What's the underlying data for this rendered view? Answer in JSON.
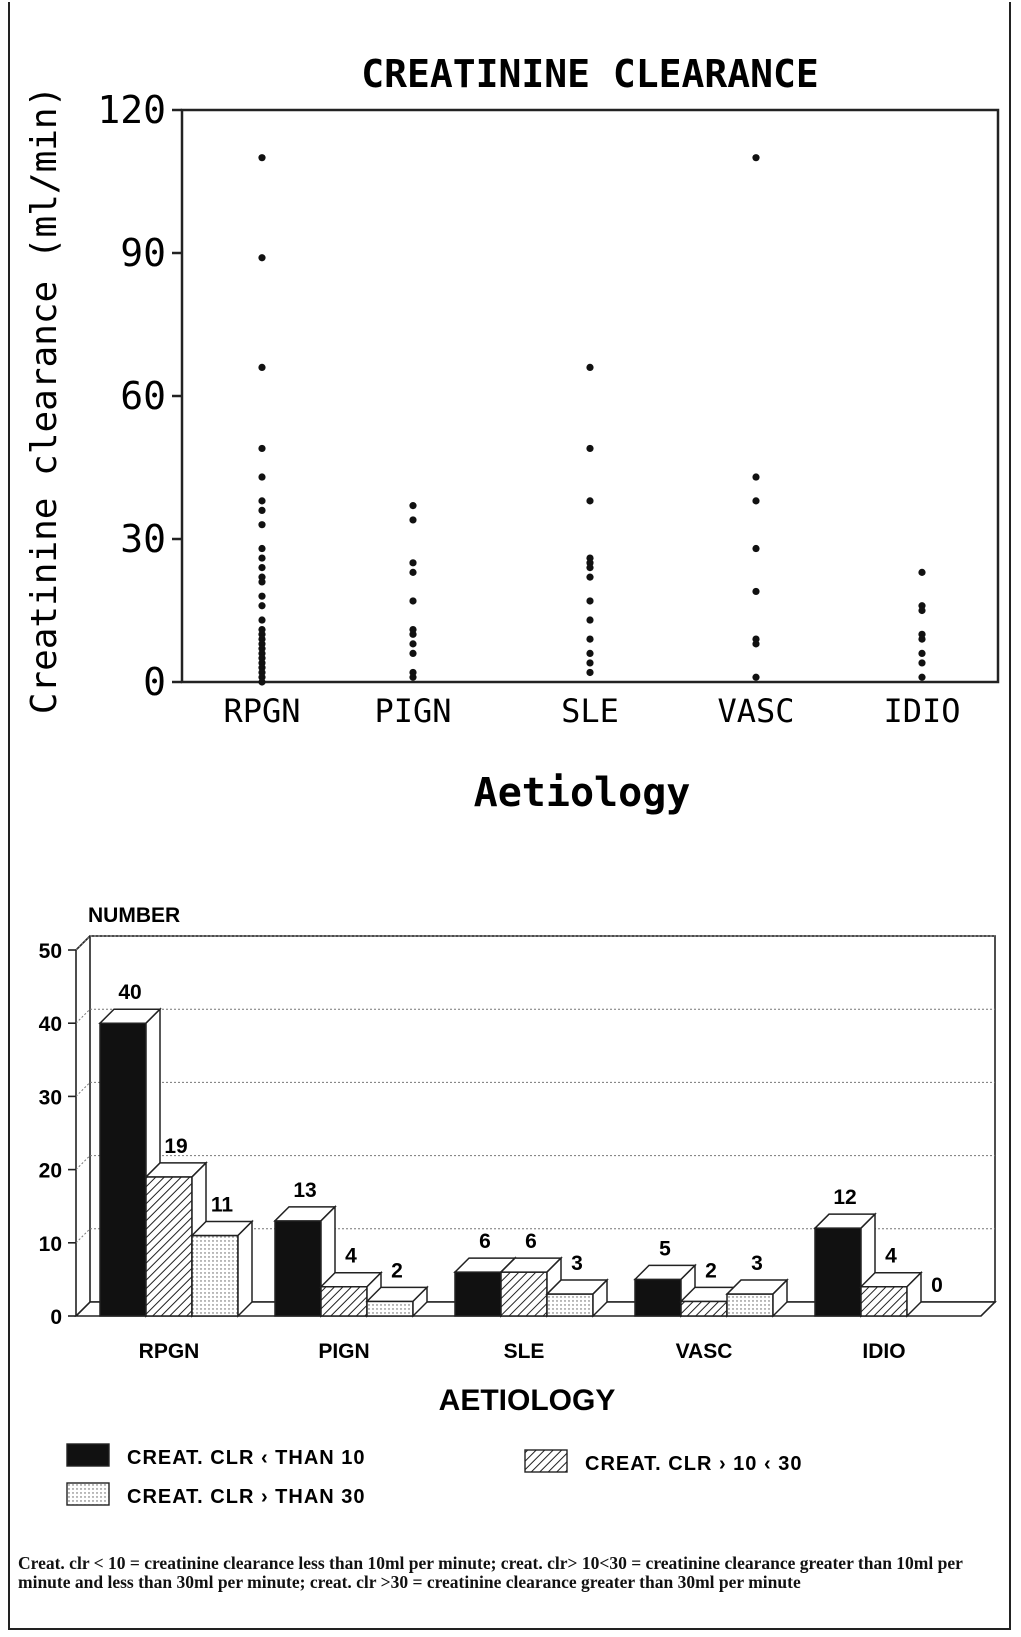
{
  "chart_data": [
    {
      "type": "scatter",
      "title": "CREATININE CLEARANCE",
      "xlabel": "Aetiology",
      "ylabel": "Creatinine clearance (ml/min)",
      "categories": [
        "RPGN",
        "PIGN",
        "SLE",
        "VASC",
        "IDIO"
      ],
      "ylim": [
        0,
        120
      ],
      "yticks": [
        "0",
        "30",
        "60",
        "90",
        "120"
      ],
      "grid": false,
      "points": {
        "RPGN": [
          110,
          89,
          66,
          49,
          43,
          38,
          36,
          33,
          28,
          26,
          24,
          22,
          21,
          18,
          16,
          13,
          11,
          10,
          9,
          8,
          7,
          6,
          5,
          4,
          3,
          2,
          1,
          0
        ],
        "PIGN": [
          37,
          34,
          25,
          23,
          17,
          11,
          10,
          8,
          6,
          2,
          1
        ],
        "SLE": [
          66,
          49,
          38,
          26,
          25,
          24,
          22,
          17,
          13,
          9,
          6,
          4,
          2
        ],
        "VASC": [
          110,
          43,
          38,
          28,
          19,
          9,
          8,
          1
        ],
        "IDIO": [
          23,
          16,
          15,
          10,
          9,
          6,
          4,
          1
        ]
      }
    },
    {
      "type": "bar",
      "title": "",
      "ylabel": "NUMBER",
      "xlabel": "AETIOLOGY",
      "categories": [
        "RPGN",
        "PIGN",
        "SLE",
        "VASC",
        "IDIO"
      ],
      "ylim": [
        0,
        50
      ],
      "yticks": [
        "0",
        "10",
        "20",
        "30",
        "40",
        "50"
      ],
      "grid": true,
      "legend_position": "bottom",
      "series": [
        {
          "name": "CREAT. CLR ‹ THAN 10",
          "values": [
            40,
            13,
            6,
            5,
            12
          ],
          "labels": [
            "40",
            "13",
            "6",
            "5",
            "12"
          ],
          "color": "#111111",
          "pattern": "solid"
        },
        {
          "name": "CREAT. CLR › 10 ‹ 30",
          "values": [
            19,
            4,
            6,
            2,
            4
          ],
          "labels": [
            "19",
            "4",
            "6",
            "2",
            "4"
          ],
          "color": "#ffffff",
          "pattern": "hatch"
        },
        {
          "name": "CREAT. CLR › THAN 30",
          "values": [
            11,
            2,
            3,
            3,
            0
          ],
          "labels": [
            "11",
            "2",
            "3",
            "3",
            "0"
          ],
          "color": "#ffffff",
          "pattern": "dots"
        }
      ]
    }
  ],
  "footnote": "Creat. clr < 10 = creatinine clearance less than 10ml per minute; creat. clr> 10<30 = creatinine clearance greater than 10ml per minute and less than 30ml per minute; creat. clr >30 = creatinine clearance greater than 30ml per minute"
}
